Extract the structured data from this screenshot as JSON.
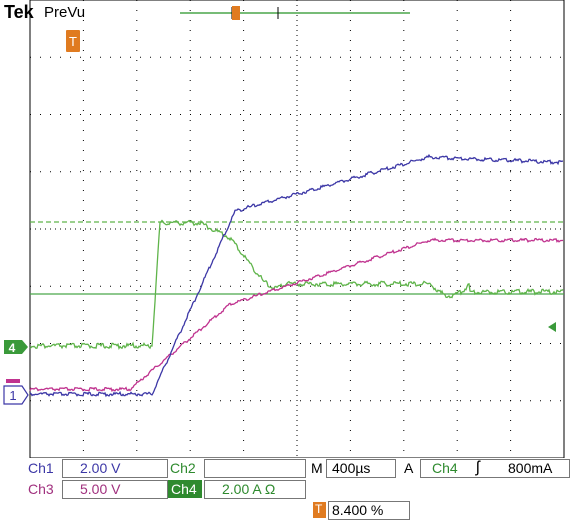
{
  "header": {
    "brand": "Tek",
    "mode": "PreVu"
  },
  "colors": {
    "ch1": "#3c37a6",
    "ch3": "#c0338f",
    "ch4": "#5fb44a",
    "trigger": "#e07b20",
    "grid": "#000000",
    "label_ch1": "#3c37a6",
    "label_ch3": "#a0307e",
    "label_ch4": "#2e8a2e"
  },
  "markers": {
    "ch4": "4",
    "ch1": "1",
    "trigger": "T"
  },
  "readouts": {
    "ch1_label": "Ch1",
    "ch1_scale": "2.00 V",
    "ch2_label": "Ch2",
    "ch2_scale": "",
    "ch3_label": "Ch3",
    "ch3_scale": "5.00 V",
    "ch4_label": "Ch4",
    "ch4_scale": "2.00 A Ω",
    "timebase_label": "M",
    "timebase": "400µs",
    "trigger_mode": "A",
    "trigger_source": "Ch4",
    "trigger_slope": "ʃ",
    "trigger_level": "800mA",
    "trigger_pos_icon": "T",
    "trigger_position": "8.400 %"
  }
}
